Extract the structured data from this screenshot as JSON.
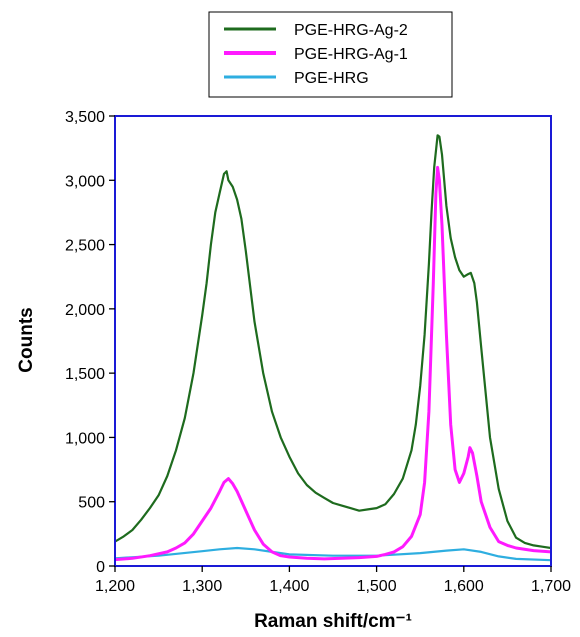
{
  "chart_data": {
    "type": "line",
    "xlabel": "Raman shift/cm⁻¹",
    "ylabel": "Counts",
    "xlim": [
      1200,
      1700
    ],
    "ylim": [
      0,
      3500
    ],
    "x_ticks": [
      1200,
      1300,
      1400,
      1500,
      1600,
      1700
    ],
    "x_tick_labels": [
      "1,200",
      "1,300",
      "1,400",
      "1,500",
      "1,600",
      "1,700"
    ],
    "y_ticks": [
      0,
      500,
      1000,
      1500,
      2000,
      2500,
      3000,
      3500
    ],
    "y_tick_labels": [
      "0",
      "500",
      "1,000",
      "1,500",
      "2,000",
      "2,500",
      "3,000",
      "3,500"
    ],
    "grid": false,
    "legend_position": "top",
    "series": [
      {
        "name": "PGE-HRG-Ag-2",
        "color": "#1e6b1e",
        "x": [
          1200,
          1210,
          1220,
          1230,
          1240,
          1250,
          1260,
          1270,
          1280,
          1290,
          1300,
          1305,
          1310,
          1315,
          1320,
          1325,
          1328,
          1330,
          1335,
          1340,
          1345,
          1350,
          1360,
          1370,
          1380,
          1390,
          1400,
          1410,
          1420,
          1430,
          1440,
          1450,
          1460,
          1470,
          1480,
          1490,
          1500,
          1510,
          1520,
          1530,
          1540,
          1545,
          1550,
          1555,
          1560,
          1563,
          1566,
          1570,
          1572,
          1575,
          1580,
          1585,
          1590,
          1595,
          1600,
          1605,
          1608,
          1612,
          1615,
          1620,
          1625,
          1630,
          1640,
          1650,
          1660,
          1670,
          1680,
          1690,
          1700
        ],
        "y": [
          190,
          230,
          280,
          360,
          450,
          550,
          700,
          900,
          1150,
          1500,
          1950,
          2200,
          2500,
          2750,
          2900,
          3050,
          3070,
          3000,
          2950,
          2850,
          2700,
          2450,
          1900,
          1500,
          1200,
          1000,
          850,
          720,
          630,
          570,
          530,
          490,
          470,
          450,
          430,
          440,
          450,
          480,
          560,
          680,
          900,
          1100,
          1400,
          1800,
          2350,
          2750,
          3100,
          3350,
          3340,
          3200,
          2800,
          2550,
          2400,
          2300,
          2250,
          2270,
          2280,
          2200,
          2050,
          1700,
          1350,
          1000,
          600,
          350,
          220,
          180,
          160,
          150,
          140
        ]
      },
      {
        "name": "PGE-HRG-Ag-1",
        "color": "#ff1aff",
        "x": [
          1200,
          1220,
          1240,
          1260,
          1270,
          1280,
          1290,
          1300,
          1310,
          1320,
          1325,
          1330,
          1335,
          1340,
          1350,
          1360,
          1370,
          1380,
          1390,
          1400,
          1420,
          1440,
          1460,
          1480,
          1500,
          1510,
          1520,
          1530,
          1540,
          1550,
          1555,
          1560,
          1565,
          1568,
          1570,
          1572,
          1575,
          1580,
          1585,
          1590,
          1595,
          1600,
          1605,
          1607,
          1610,
          1615,
          1620,
          1630,
          1640,
          1650,
          1660,
          1680,
          1700
        ],
        "y": [
          50,
          60,
          80,
          110,
          140,
          180,
          250,
          350,
          450,
          580,
          650,
          680,
          640,
          580,
          430,
          280,
          170,
          110,
          80,
          70,
          60,
          55,
          60,
          65,
          75,
          90,
          110,
          150,
          230,
          400,
          650,
          1200,
          2200,
          2900,
          3100,
          3000,
          2650,
          1800,
          1100,
          750,
          650,
          720,
          850,
          920,
          880,
          700,
          500,
          300,
          190,
          160,
          140,
          120,
          110
        ]
      },
      {
        "name": "PGE-HRG",
        "color": "#2eaee0",
        "x": [
          1200,
          1250,
          1300,
          1320,
          1340,
          1360,
          1380,
          1400,
          1450,
          1500,
          1550,
          1580,
          1600,
          1620,
          1640,
          1660,
          1700
        ],
        "y": [
          60,
          80,
          115,
          130,
          140,
          130,
          110,
          90,
          80,
          80,
          100,
          120,
          130,
          110,
          75,
          55,
          45
        ]
      }
    ]
  }
}
